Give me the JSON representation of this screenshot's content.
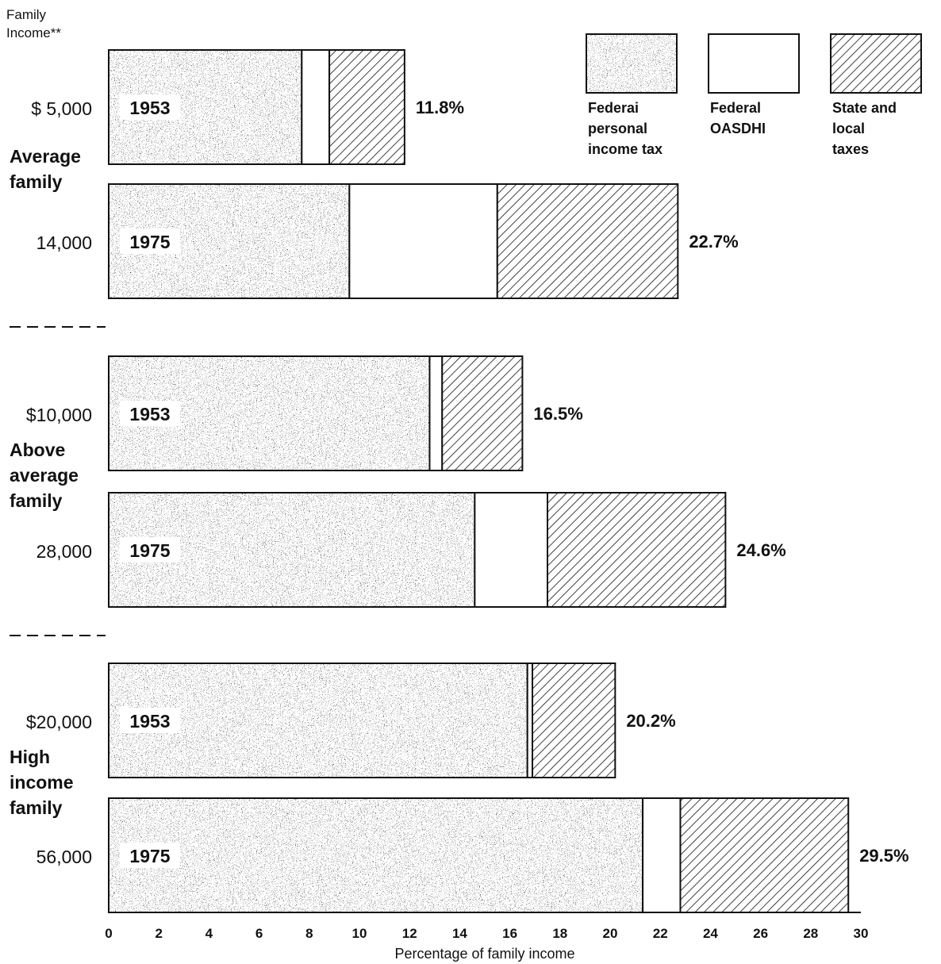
{
  "chart_data": {
    "type": "bar",
    "stacked": true,
    "orientation": "horizontal",
    "header": [
      "Family",
      "Income**"
    ],
    "xlabel": "Percentage of family income",
    "xlim": [
      0,
      30
    ],
    "xticks": [
      "0",
      "2",
      "4",
      "6",
      "8",
      "10",
      "12",
      "14",
      "16",
      "18",
      "20",
      "22",
      "24",
      "26",
      "28",
      "30"
    ],
    "groups": [
      {
        "label": [
          "Average",
          "family"
        ],
        "bars": [
          {
            "income": "$  5,000",
            "year": "1953",
            "values": [
              7.7,
              1.1,
              3.0
            ],
            "total": "11.8%"
          },
          {
            "income": "14,000",
            "year": "1975",
            "values": [
              9.6,
              5.9,
              7.2
            ],
            "total": "22.7%"
          }
        ]
      },
      {
        "label": [
          "Above",
          "average",
          "family"
        ],
        "bars": [
          {
            "income": "$10,000",
            "year": "1953",
            "values": [
              12.8,
              0.5,
              3.2
            ],
            "total": "16.5%"
          },
          {
            "income": "28,000",
            "year": "1975",
            "values": [
              14.6,
              2.9,
              7.1
            ],
            "total": "24.6%"
          }
        ]
      },
      {
        "label": [
          "High",
          "income",
          "family"
        ],
        "bars": [
          {
            "income": "$20,000",
            "year": "1953",
            "values": [
              16.7,
              0.2,
              3.3
            ],
            "total": "20.2%"
          },
          {
            "income": "56,000",
            "year": "1975",
            "values": [
              21.3,
              1.5,
              6.7
            ],
            "total": "29.5%"
          }
        ]
      }
    ],
    "series": [
      {
        "name": [
          "Federai",
          "personal",
          "income tax"
        ],
        "pattern": "stipple",
        "color": "#555555"
      },
      {
        "name": [
          "Federal",
          "OASDHI"
        ],
        "pattern": "blank",
        "color": "#ffffff"
      },
      {
        "name": [
          "State and",
          "local",
          "taxes"
        ],
        "pattern": "hatch",
        "color": "#222222"
      }
    ]
  }
}
